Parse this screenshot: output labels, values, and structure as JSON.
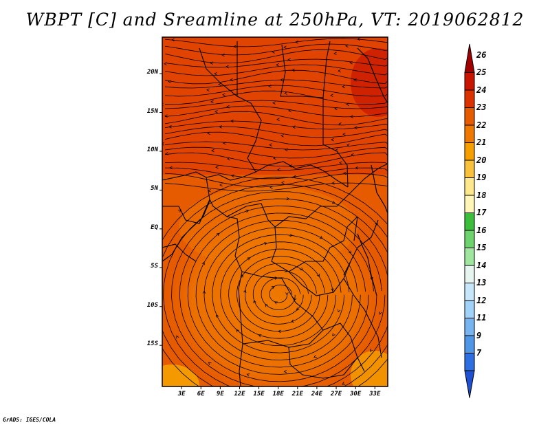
{
  "title": "WBPT [C] and Sreamline at 250hPa, VT: 2019062812",
  "credit": "GrADS: IGES/COLA",
  "lat_ticks": [
    "20N",
    "15N",
    "10N",
    "5N",
    "EQ",
    "5S",
    "10S",
    "15S"
  ],
  "lon_ticks": [
    "3E",
    "6E",
    "9E",
    "12E",
    "15E",
    "18E",
    "21E",
    "24E",
    "27E",
    "30E",
    "33E"
  ],
  "colorbar": {
    "labels": [
      "26",
      "25",
      "24",
      "23",
      "22",
      "21",
      "20",
      "19",
      "18",
      "17",
      "16",
      "15",
      "14",
      "13",
      "12",
      "11",
      "9",
      "7"
    ],
    "colors": [
      "#a00000",
      "#c81400",
      "#dc3200",
      "#e65a00",
      "#ee7800",
      "#f5a000",
      "#fac23c",
      "#fde88c",
      "#fff6b8",
      "#3cbe3c",
      "#6ed26e",
      "#a0e6a0",
      "#e6f5f0",
      "#c8e6fa",
      "#a0d2fa",
      "#78b4f0",
      "#5096e6",
      "#2d6ee0",
      "#1e50d2"
    ]
  },
  "map_colors": {
    "dominant": "#e65a00",
    "warm_north": "#dc3200",
    "hot_ne": "#c81400",
    "mild_south": "#ee7800",
    "cool_sw": "#f5a000"
  }
}
